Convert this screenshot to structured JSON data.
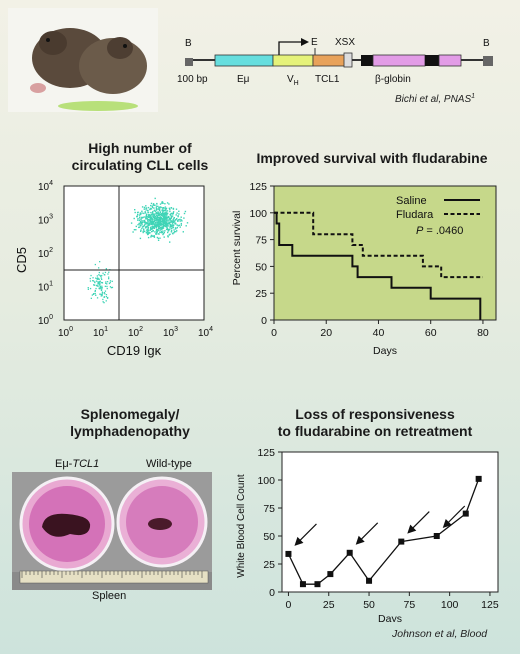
{
  "construct": {
    "labels": {
      "b_left": "B",
      "b_right": "B",
      "scale": "100 bp",
      "emu": "Eμ",
      "vh": "V",
      "vh_sub": "H",
      "e": "E",
      "xsx": "XSX",
      "tcl1": "TCL1",
      "beta_globin": "β-globin"
    },
    "citation": "Bichi et al, PNAS",
    "citation_sup": "1"
  },
  "flow": {
    "title_line1": "High number of",
    "title_line2": "circulating CLL cells",
    "ylabel": "CD5",
    "xlabel": "CD19 Igκ",
    "ticks": [
      "10",
      "10",
      "10",
      "10",
      "10"
    ],
    "exponents": [
      "0",
      "1",
      "2",
      "3",
      "4"
    ],
    "color": "#3fd4b6"
  },
  "survival": {
    "title": "Improved survival with fludarabine",
    "chart_data": {
      "type": "line",
      "title": "Improved survival with fludarabine",
      "xlabel": "Days",
      "ylabel": "Percent survival",
      "xlim": [
        0,
        85
      ],
      "ylim": [
        0,
        125
      ],
      "xticks": [
        0,
        20,
        40,
        60,
        80
      ],
      "yticks": [
        0,
        25,
        50,
        75,
        100,
        125
      ],
      "annotation_p": "P",
      "annotation_value": " = .0460",
      "legend": "top-right",
      "series": [
        {
          "name": "Saline",
          "style": "solid",
          "points": [
            [
              0,
              100
            ],
            [
              1,
              100
            ],
            [
              1,
              90
            ],
            [
              2,
              90
            ],
            [
              2,
              70
            ],
            [
              7,
              70
            ],
            [
              7,
              60
            ],
            [
              30,
              60
            ],
            [
              30,
              50
            ],
            [
              32,
              50
            ],
            [
              32,
              40
            ],
            [
              45,
              40
            ],
            [
              45,
              30
            ],
            [
              60,
              30
            ],
            [
              60,
              20
            ],
            [
              79,
              20
            ],
            [
              79,
              0
            ]
          ]
        },
        {
          "name": "Fludara",
          "style": "dashed",
          "points": [
            [
              0,
              100
            ],
            [
              15,
              100
            ],
            [
              15,
              80
            ],
            [
              30,
              80
            ],
            [
              30,
              70
            ],
            [
              34,
              70
            ],
            [
              34,
              60
            ],
            [
              57,
              60
            ],
            [
              57,
              50
            ],
            [
              64,
              50
            ],
            [
              64,
              40
            ],
            [
              80,
              40
            ]
          ]
        }
      ],
      "plot_bg": "#c6d88a"
    }
  },
  "spleen": {
    "title_line1": "Splenomegaly/",
    "title_line2": "lymphadenopathy",
    "left_label": "Eμ-",
    "left_label_italic": "TCL1",
    "right_label": "Wild-type",
    "caption": "Spleen"
  },
  "retreatment": {
    "title_line1": "Loss of responsiveness",
    "title_line2": "to fludarabine on retreatment",
    "chart_data": {
      "type": "line",
      "title": "Loss of responsiveness to fludarabine on retreatment",
      "xlabel": "Days",
      "ylabel": "White Blood Cell Count",
      "xlim": [
        -4,
        130
      ],
      "ylim": [
        0,
        125
      ],
      "xticks": [
        0,
        25,
        50,
        75,
        100,
        125
      ],
      "yticks": [
        0,
        25,
        50,
        75,
        100,
        125
      ],
      "series": [
        {
          "points": [
            [
              0,
              34
            ],
            [
              9,
              7
            ],
            [
              18,
              7
            ],
            [
              26,
              16
            ],
            [
              38,
              35
            ],
            [
              50,
              10
            ],
            [
              70,
              45
            ],
            [
              92,
              50
            ],
            [
              110,
              70
            ],
            [
              118,
              101
            ]
          ]
        }
      ],
      "arrow_points_at": [
        [
          0,
          34
        ],
        [
          38,
          35
        ],
        [
          70,
          45
        ],
        [
          92,
          50
        ]
      ]
    },
    "citation": "Johnson et al, Blood"
  }
}
